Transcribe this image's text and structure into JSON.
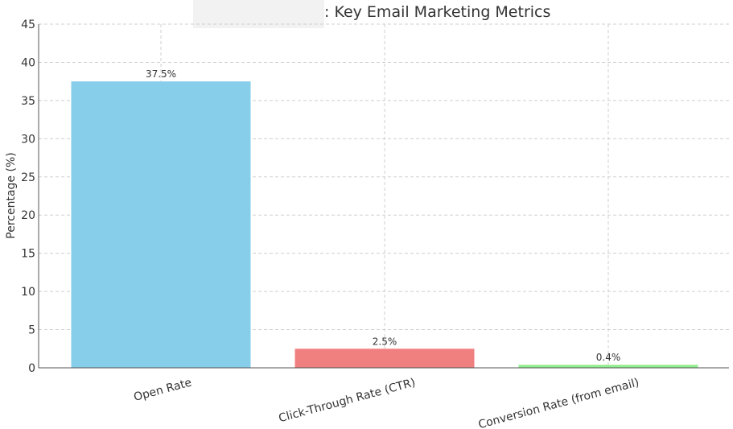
{
  "chart_data": {
    "type": "bar",
    "title": ": Key Email Marketing Metrics",
    "title_redacted_prefix": true,
    "xlabel": "",
    "ylabel": "Percentage (%)",
    "ylim": [
      0,
      45
    ],
    "yticks": [
      0,
      5,
      10,
      15,
      20,
      25,
      30,
      35,
      40,
      45
    ],
    "categories": [
      "Open Rate",
      "Click-Through Rate (CTR)",
      "Conversion Rate (from email)"
    ],
    "values": [
      37.5,
      2.5,
      0.4
    ],
    "value_labels": [
      "37.5%",
      "2.5%",
      "0.4%"
    ],
    "colors": [
      "#87ceeb",
      "#f08080",
      "#90ee90"
    ],
    "grid": true,
    "legend": "none"
  }
}
